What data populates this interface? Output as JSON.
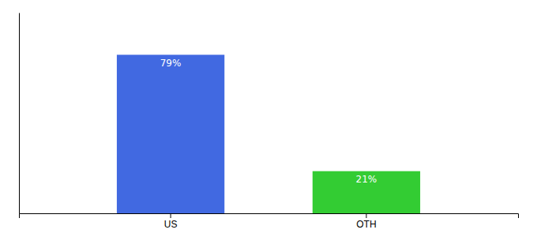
{
  "chart_data": {
    "type": "bar",
    "categories": [
      "US",
      "OTH"
    ],
    "values": [
      79,
      21
    ],
    "value_labels": [
      "79%",
      "21%"
    ],
    "colors": [
      "#4169e1",
      "#33cc33"
    ],
    "ylim": [
      0,
      100
    ],
    "data_labels": true,
    "tick_labels": "x"
  }
}
